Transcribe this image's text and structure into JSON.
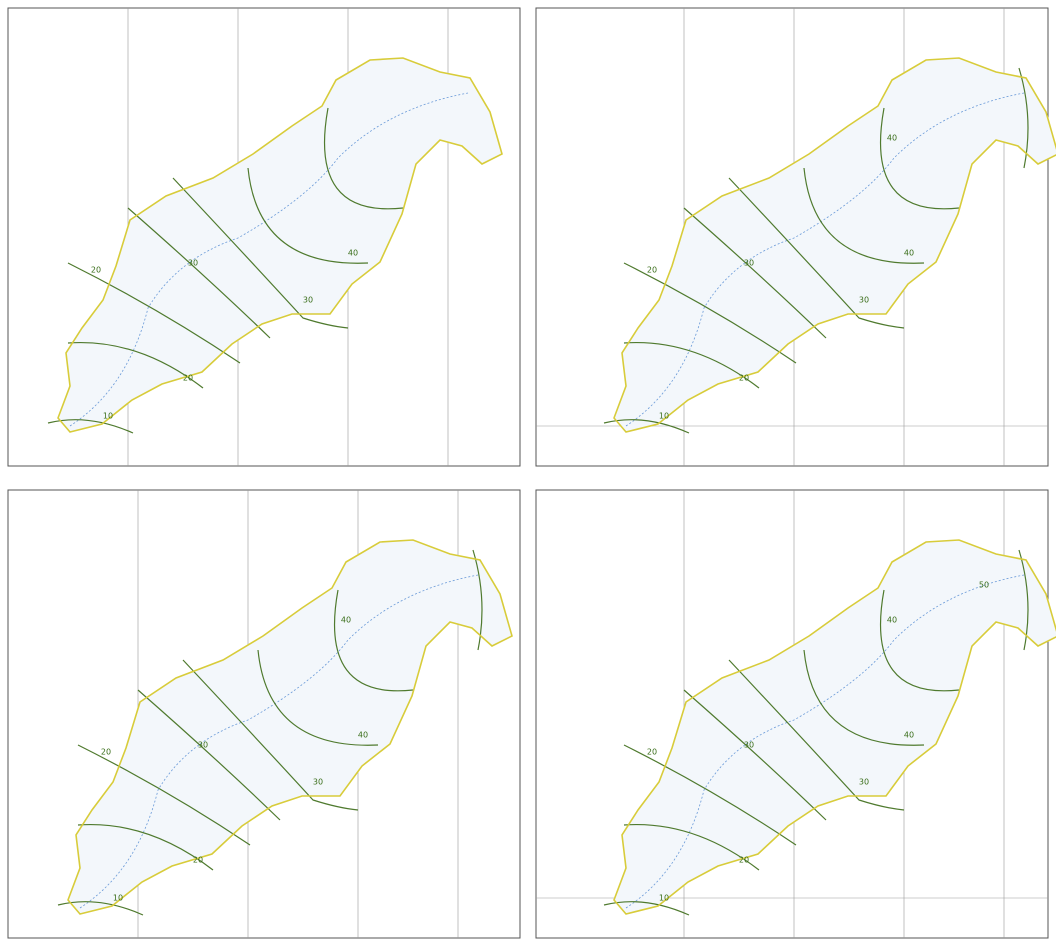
{
  "panels": [
    {
      "contour_labels": [
        "10",
        "20",
        "20",
        "30",
        "30",
        "40"
      ]
    },
    {
      "contour_labels": [
        "10",
        "20",
        "20",
        "30",
        "30",
        "40",
        "40"
      ]
    },
    {
      "contour_labels": [
        "10",
        "20",
        "20",
        "30",
        "30",
        "40",
        "40"
      ]
    },
    {
      "contour_labels": [
        "10",
        "20",
        "20",
        "30",
        "30",
        "40",
        "40",
        "50"
      ]
    }
  ]
}
